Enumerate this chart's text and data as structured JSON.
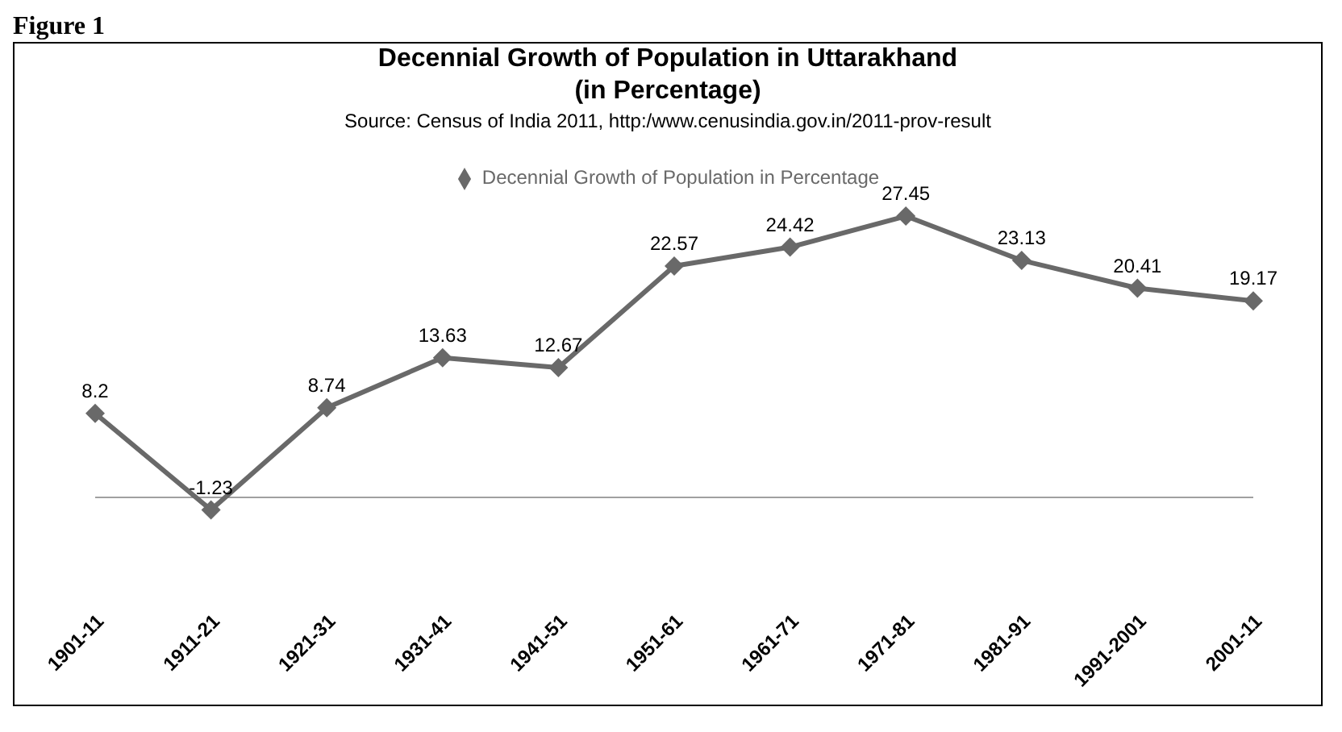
{
  "chart_data": {
    "type": "line",
    "title": "Decennial Growth of Population in Uttarakhand\n(in Percentage)",
    "subtitle": "Source: Census of India 2011, http:/www.cenusindia.gov.in/2011-prov-result",
    "annotations": [
      "Figure 1"
    ],
    "categories": [
      "1901-11",
      "1911-21",
      "1921-31",
      "1931-41",
      "1941-51",
      "1951-61",
      "1961-71",
      "1971-81",
      "1981-91",
      "1991-2001",
      "2001-11"
    ],
    "series": [
      {
        "name": "Decennial Growth of Population in Percentage",
        "color": "#696969",
        "values": [
          8.2,
          -1.23,
          8.74,
          13.63,
          12.67,
          22.57,
          24.42,
          27.45,
          23.13,
          20.41,
          19.17
        ]
      }
    ],
    "data_labels": true,
    "marker": "diamond",
    "legend": "top",
    "grid": false
  }
}
